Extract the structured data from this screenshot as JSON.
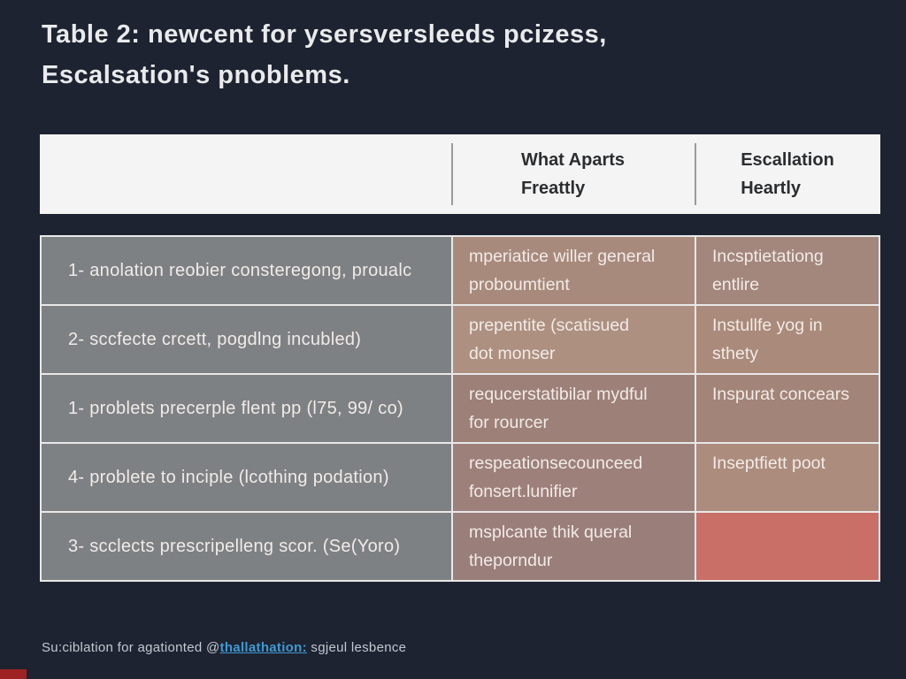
{
  "page": {
    "bg_color": "#1d2330",
    "title_line1": "Table 2:  newcent for ysersversleeds pcizess,",
    "title_line2": "Escalsation's pnoblems.",
    "accent_red": "#9e2222"
  },
  "table": {
    "header": {
      "col1": "",
      "col2_line1": "What Aparts",
      "col2_line2": "Freattly",
      "col3_line1": "Escallation",
      "col3_line2": "Heartly",
      "bg": "#f4f4f4",
      "text_color": "#2b2d30"
    },
    "rows": [
      {
        "c1": "1- anolation reobier consteregong, proualc",
        "c2_line1": "mperiatice willer general",
        "c2_line2": "proboumtient",
        "c3_line1": "Incsptietationg",
        "c3_line2": "entlire",
        "c1_bg": "#7e8184",
        "c2_bg": "#a88a7d",
        "c3_bg": "#a3867c"
      },
      {
        "c1": "2- sccfecte crcett, pogdlng incubled)",
        "c2_line1": "prepentite (scatisued",
        "c2_line2": "dot monser",
        "c3_line1": "Instullfe yog in",
        "c3_line2": "sthety",
        "c1_bg": "#7e8184",
        "c2_bg": "#ae9081",
        "c3_bg": "#aa8a7a"
      },
      {
        "c1": "1- problets precerple flent pp (l75, 99/ co)",
        "c2_line1": "requcerstatibilar mydful",
        "c2_line2": "for rourcer",
        "c3_line1": "Inspurat concears",
        "c3_line2": "",
        "c1_bg": "#7e8184",
        "c2_bg": "#9d8078",
        "c3_bg": "#a38478"
      },
      {
        "c1": "4- problete to inciple (lcothing podation)",
        "c2_line1": "respeationsecounceed",
        "c2_line2": "fonsert.lunifier",
        "c3_line1": "Inseptfiett poot",
        "c3_line2": "",
        "c1_bg": "#7e8184",
        "c2_bg": "#9e807b",
        "c3_bg": "#ac8c7d"
      },
      {
        "c1": "3- scclects prescripelleng scor. (Se(Yoro)",
        "c2_line1": "msplcante thik queral",
        "c2_line2": "theporndur",
        "c3_line1": "",
        "c3_line2": "",
        "c1_bg": "#7e8184",
        "c2_bg": "#9a7e7a",
        "c3_bg": "#c96f68"
      }
    ]
  },
  "footer": {
    "prefix": "Su:ciblation for agationted @",
    "link": "thallathation:",
    "suffix": " sgjeul lesbence",
    "link_color": "#3f9ad2"
  }
}
